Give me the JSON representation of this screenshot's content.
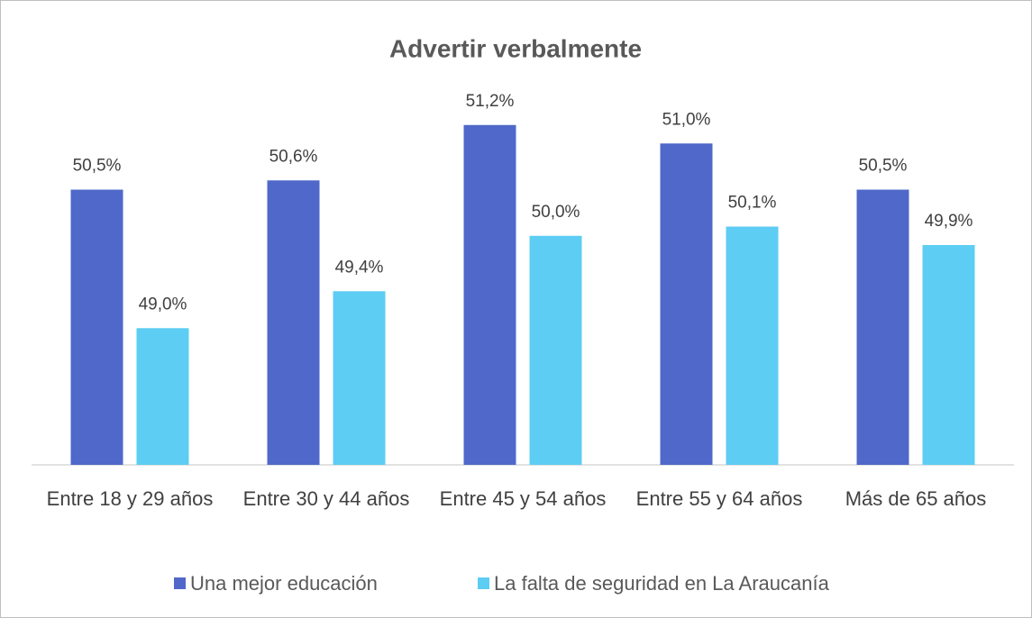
{
  "chart_data": {
    "type": "bar",
    "title": "Advertir verbalmente",
    "categories": [
      "Entre 18 y 29 años",
      "Entre 30 y 44 años",
      "Entre 45 y 54 años",
      "Entre 55 y 64 años",
      "Más de 65 años"
    ],
    "series": [
      {
        "name": "Una mejor educación",
        "color": "#4f68c9",
        "values": [
          50.5,
          50.6,
          51.2,
          51.0,
          50.5
        ],
        "value_labels": [
          "50,5%",
          "50,6%",
          "51,2%",
          "51,0%",
          "50,5%"
        ]
      },
      {
        "name": "La falta de seguridad en La Araucanía",
        "color": "#5dcdf3",
        "values": [
          49.0,
          49.4,
          50.0,
          50.1,
          49.9
        ],
        "value_labels": [
          "49,0%",
          "49,4%",
          "50,0%",
          "50,1%",
          "49,9%"
        ]
      }
    ],
    "ylim": [
      47.52,
      51.5
    ],
    "legend": "bottom"
  }
}
